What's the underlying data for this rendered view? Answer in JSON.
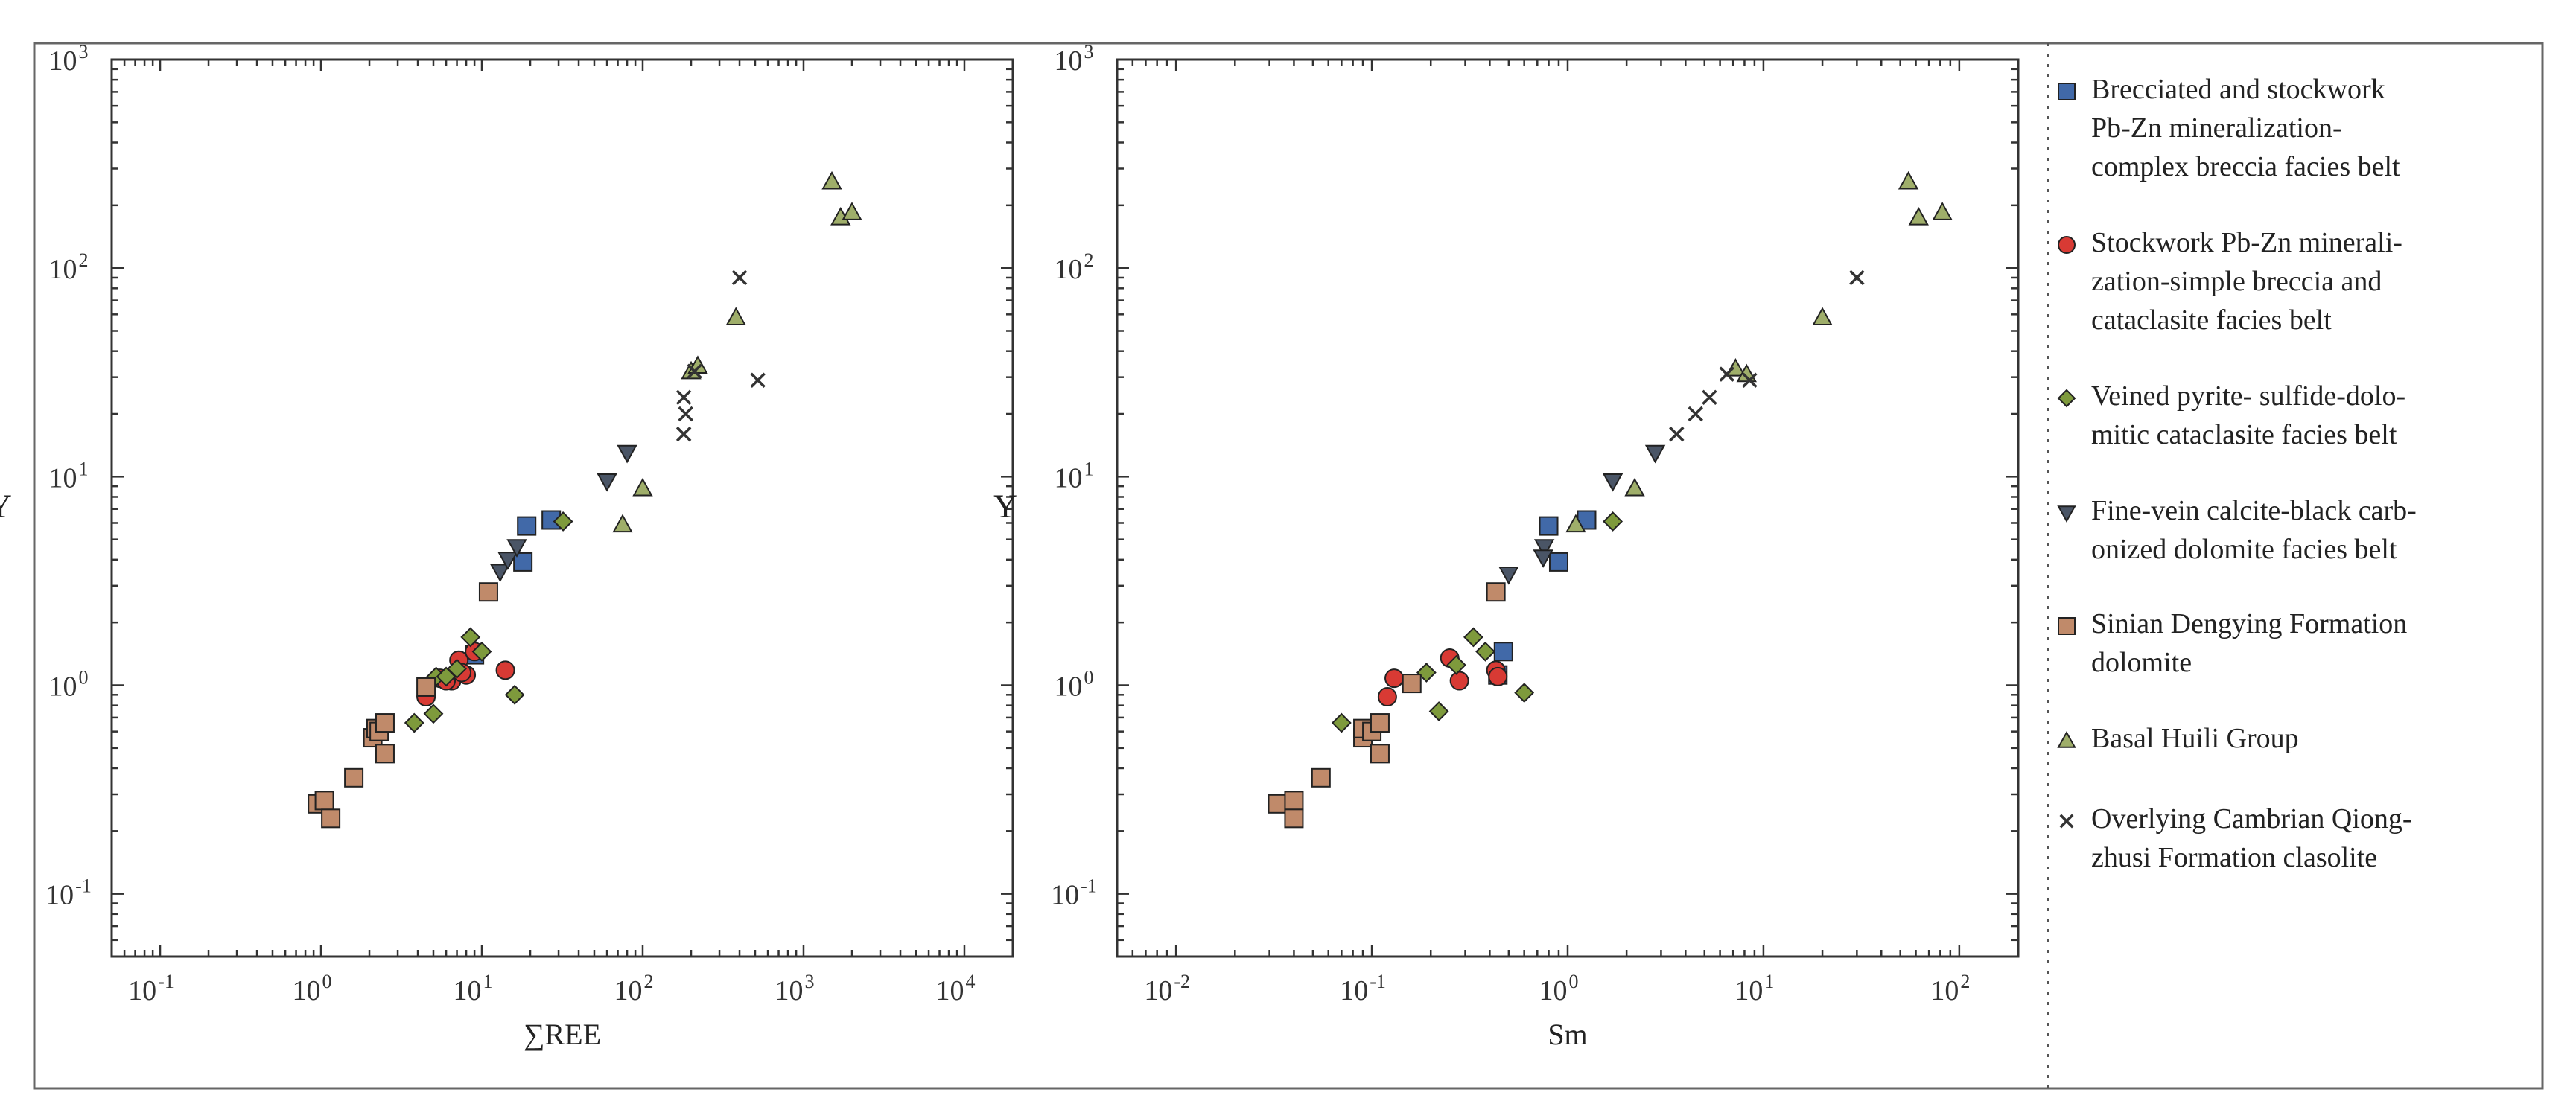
{
  "chart_data": [
    {
      "type": "scatter",
      "xlabel": "∑REE",
      "ylabel": "Y",
      "xscale": "log",
      "yscale": "log",
      "xlim": [
        0.05,
        20000
      ],
      "ylim": [
        0.05,
        1000
      ],
      "xticks": [
        {
          "v": 0.1,
          "m": "10",
          "e": "-1"
        },
        {
          "v": 1,
          "m": "10",
          "e": "0"
        },
        {
          "v": 10,
          "m": "10",
          "e": "1"
        },
        {
          "v": 100,
          "m": "10",
          "e": "2"
        },
        {
          "v": 1000,
          "m": "10",
          "e": "3"
        },
        {
          "v": 10000,
          "m": "10",
          "e": "4"
        }
      ],
      "yticks": [
        {
          "v": 0.1,
          "m": "10",
          "e": "-1"
        },
        {
          "v": 1,
          "m": "10",
          "e": "0"
        },
        {
          "v": 10,
          "m": "10",
          "e": "1"
        },
        {
          "v": 100,
          "m": "10",
          "e": "2"
        },
        {
          "v": 1000,
          "m": "10",
          "e": "3"
        }
      ],
      "series": [
        {
          "name": "Brecciated and stockwork Pb-Zn mineralization-complex breccia facies belt",
          "points": [
            [
              19,
              5.8
            ],
            [
              27,
              6.2
            ],
            [
              18,
              3.9
            ],
            [
              9,
              1.4
            ]
          ]
        },
        {
          "name": "Stockwork Pb-Zn mineralization-simple breccia and cataclasite facies belt",
          "points": [
            [
              4.5,
              0.88
            ],
            [
              5.5,
              1.08
            ],
            [
              6.5,
              1.05
            ],
            [
              7.2,
              1.32
            ],
            [
              8,
              1.12
            ],
            [
              14,
              1.18
            ],
            [
              9,
              1.45
            ],
            [
              7.5,
              1.15
            ],
            [
              6,
              1.05
            ]
          ]
        },
        {
          "name": "Veined pyrite- sulfide-dolomitic cataclasite facies belt",
          "points": [
            [
              3.8,
              0.66
            ],
            [
              5,
              0.73
            ],
            [
              5.2,
              1.1
            ],
            [
              8.5,
              1.7
            ],
            [
              10,
              1.45
            ],
            [
              16,
              0.9
            ],
            [
              7,
              1.2
            ],
            [
              32,
              6.1
            ],
            [
              6,
              1.1
            ]
          ]
        },
        {
          "name": "Fine-vein calcite-black carbonized dolomite facies belt",
          "points": [
            [
              13,
              3.5
            ],
            [
              14.5,
              4.0
            ],
            [
              16.5,
              4.6
            ],
            [
              60,
              9.5
            ],
            [
              80,
              13
            ]
          ]
        },
        {
          "name": "Sinian Dengying Formation dolomite",
          "points": [
            [
              0.95,
              0.27
            ],
            [
              1.05,
              0.28
            ],
            [
              1.15,
              0.23
            ],
            [
              1.6,
              0.36
            ],
            [
              2.1,
              0.56
            ],
            [
              2.2,
              0.62
            ],
            [
              2.3,
              0.6
            ],
            [
              2.5,
              0.66
            ],
            [
              2.5,
              0.47
            ],
            [
              4.5,
              0.98
            ],
            [
              11,
              2.8
            ]
          ]
        },
        {
          "name": "Basal Huili Group",
          "points": [
            [
              75,
              5.9
            ],
            [
              100,
              8.8
            ],
            [
              200,
              32
            ],
            [
              220,
              34
            ],
            [
              380,
              58
            ],
            [
              1500,
              260
            ],
            [
              1700,
              175
            ],
            [
              2000,
              185
            ]
          ]
        },
        {
          "name": "Overlying Cambrian Qiong-zhusi Formation clasolite",
          "points": [
            [
              180,
              24
            ],
            [
              185,
              20
            ],
            [
              180,
              16
            ],
            [
              210,
              32
            ],
            [
              400,
              90
            ],
            [
              520,
              29
            ]
          ]
        }
      ]
    },
    {
      "type": "scatter",
      "xlabel": "Sm",
      "ylabel": "Y",
      "xscale": "log",
      "yscale": "log",
      "xlim": [
        0.005,
        200
      ],
      "ylim": [
        0.05,
        1000
      ],
      "xticks": [
        {
          "v": 0.01,
          "m": "10",
          "e": "-2"
        },
        {
          "v": 0.1,
          "m": "10",
          "e": "-1"
        },
        {
          "v": 1,
          "m": "10",
          "e": "0"
        },
        {
          "v": 10,
          "m": "10",
          "e": "1"
        },
        {
          "v": 100,
          "m": "10",
          "e": "2"
        }
      ],
      "yticks": [
        {
          "v": 0.1,
          "m": "10",
          "e": "-1"
        },
        {
          "v": 1,
          "m": "10",
          "e": "0"
        },
        {
          "v": 10,
          "m": "10",
          "e": "1"
        },
        {
          "v": 100,
          "m": "10",
          "e": "2"
        },
        {
          "v": 1000,
          "m": "10",
          "e": "3"
        }
      ],
      "series": [
        {
          "name": "Brecciated and stockwork Pb-Zn mineralization-complex breccia facies belt",
          "points": [
            [
              0.8,
              5.8
            ],
            [
              1.25,
              6.2
            ],
            [
              0.9,
              3.9
            ],
            [
              0.47,
              1.45
            ],
            [
              0.44,
              1.12
            ]
          ]
        },
        {
          "name": "Stockwork Pb-Zn mineralization-simple breccia and cataclasite facies belt",
          "points": [
            [
              0.12,
              0.88
            ],
            [
              0.13,
              1.08
            ],
            [
              0.25,
              1.35
            ],
            [
              0.28,
              1.05
            ],
            [
              0.43,
              1.18
            ],
            [
              0.44,
              1.1
            ]
          ]
        },
        {
          "name": "Veined pyrite- sulfide-dolomitic cataclasite facies belt",
          "points": [
            [
              0.07,
              0.66
            ],
            [
              0.19,
              1.15
            ],
            [
              0.22,
              0.75
            ],
            [
              0.27,
              1.25
            ],
            [
              0.33,
              1.7
            ],
            [
              0.38,
              1.45
            ],
            [
              0.6,
              0.92
            ],
            [
              1.7,
              6.1
            ]
          ]
        },
        {
          "name": "Fine-vein calcite-black carbonized dolomite facies belt",
          "points": [
            [
              0.5,
              3.4
            ],
            [
              0.76,
              4.6
            ],
            [
              0.75,
              4.1
            ],
            [
              1.7,
              9.5
            ],
            [
              2.8,
              13
            ]
          ]
        },
        {
          "name": "Sinian Dengying Formation dolomite",
          "points": [
            [
              0.033,
              0.27
            ],
            [
              0.04,
              0.28
            ],
            [
              0.04,
              0.23
            ],
            [
              0.055,
              0.36
            ],
            [
              0.09,
              0.56
            ],
            [
              0.09,
              0.62
            ],
            [
              0.1,
              0.6
            ],
            [
              0.11,
              0.66
            ],
            [
              0.11,
              0.47
            ],
            [
              0.16,
              1.02
            ],
            [
              0.43,
              2.8
            ]
          ]
        },
        {
          "name": "Basal Huili Group",
          "points": [
            [
              1.1,
              5.9
            ],
            [
              2.2,
              8.8
            ],
            [
              7.2,
              33
            ],
            [
              8.2,
              31
            ],
            [
              20,
              58
            ],
            [
              55,
              260
            ],
            [
              62,
              175
            ],
            [
              82,
              185
            ]
          ]
        },
        {
          "name": "Overlying Cambrian Qiong-zhusi Formation clasolite",
          "points": [
            [
              3.6,
              16
            ],
            [
              4.5,
              20
            ],
            [
              5.3,
              24
            ],
            [
              6.5,
              31
            ],
            [
              8.5,
              29
            ],
            [
              30,
              90
            ]
          ]
        }
      ]
    }
  ],
  "legend": {
    "items": [
      {
        "key": "breccia_complex",
        "lines": [
          "Brecciated and stockwork",
          "Pb-Zn mineralization-",
          "complex breccia facies belt"
        ],
        "shape": "square",
        "fill": "#4169a8"
      },
      {
        "key": "breccia_simple",
        "lines": [
          "Stockwork Pb-Zn minerali-",
          "zation-simple breccia and",
          "cataclasite facies belt"
        ],
        "shape": "circle",
        "fill": "#d83a34"
      },
      {
        "key": "veined_pyrite",
        "lines": [
          "Veined pyrite- sulfide-dolo-",
          "mitic cataclasite facies belt"
        ],
        "shape": "diamond",
        "fill": "#7e9a3c"
      },
      {
        "key": "fine_vein",
        "lines": [
          "Fine-vein calcite-black carb-",
          "onized dolomite facies belt"
        ],
        "shape": "triangle-down",
        "fill": "#4a5566"
      },
      {
        "key": "sinian",
        "lines": [
          "Sinian Dengying Formation",
          "dolomite"
        ],
        "shape": "square",
        "fill": "#c08a6a"
      },
      {
        "key": "huili",
        "lines": [
          "Basal Huili Group"
        ],
        "shape": "triangle-up",
        "fill": "#9fae6a"
      },
      {
        "key": "cambrian",
        "lines": [
          "Overlying Cambrian Qiong-",
          "zhusi Formation clasolite"
        ],
        "shape": "cross",
        "fill": "#333333"
      }
    ]
  }
}
